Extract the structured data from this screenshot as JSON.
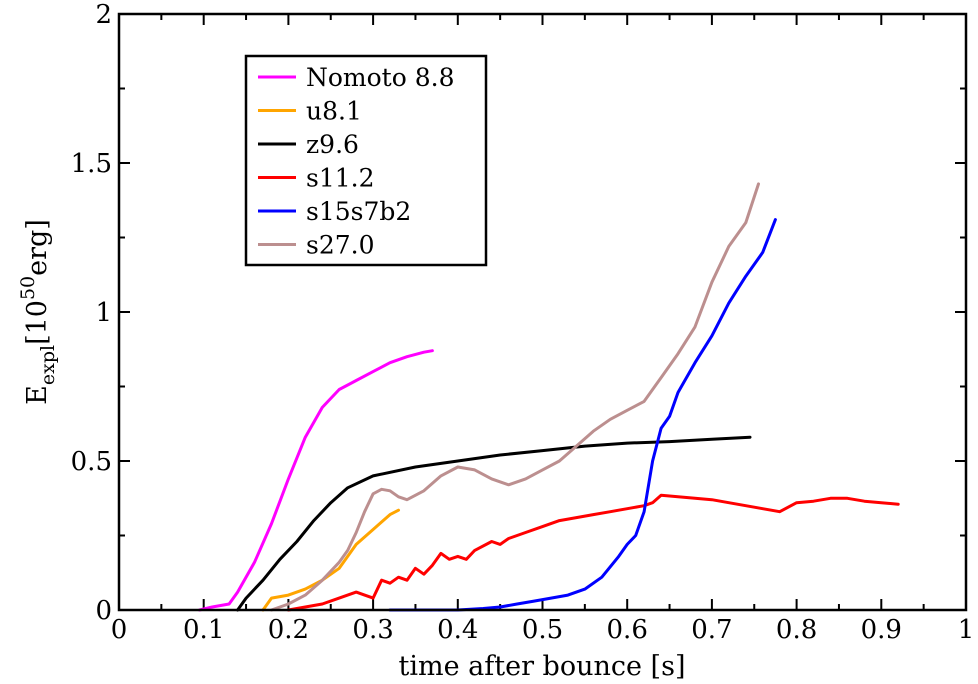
{
  "chart_data": {
    "type": "line",
    "title": "",
    "xlabel": "time after bounce [s]",
    "ylabel": {
      "base": "E",
      "sub": "expl",
      "unit_pre": "[10",
      "sup": "50",
      "unit_post": "erg]"
    },
    "xlim": [
      0,
      1
    ],
    "ylim": [
      0,
      2
    ],
    "x_ticks": [
      0,
      0.1,
      0.2,
      0.3,
      0.4,
      0.5,
      0.6,
      0.7,
      0.8,
      0.9,
      1
    ],
    "x_tick_labels": [
      "0",
      "0.1",
      "0.2",
      "0.3",
      "0.4",
      "0.5",
      "0.6",
      "0.7",
      "0.8",
      "0.9",
      "1"
    ],
    "y_ticks": [
      0,
      0.5,
      1,
      1.5,
      2
    ],
    "y_tick_labels": [
      "0",
      "0.5",
      "1",
      "1.5",
      "2"
    ],
    "legend_position": "top-left",
    "series": [
      {
        "name": "Nomoto 8.8",
        "color": "#ff00ff",
        "x": [
          0.095,
          0.11,
          0.13,
          0.14,
          0.16,
          0.18,
          0.2,
          0.22,
          0.24,
          0.26,
          0.28,
          0.3,
          0.32,
          0.34,
          0.36,
          0.37
        ],
        "y": [
          0.0,
          0.01,
          0.02,
          0.06,
          0.16,
          0.29,
          0.44,
          0.58,
          0.68,
          0.74,
          0.77,
          0.8,
          0.83,
          0.85,
          0.865,
          0.87
        ]
      },
      {
        "name": "u8.1",
        "color": "#ffa500",
        "x": [
          0.17,
          0.18,
          0.2,
          0.22,
          0.24,
          0.26,
          0.28,
          0.3,
          0.32,
          0.33
        ],
        "y": [
          0.0,
          0.04,
          0.05,
          0.07,
          0.1,
          0.14,
          0.22,
          0.27,
          0.32,
          0.335
        ]
      },
      {
        "name": "z9.6",
        "color": "#000000",
        "x": [
          0.14,
          0.15,
          0.17,
          0.19,
          0.21,
          0.23,
          0.25,
          0.27,
          0.3,
          0.35,
          0.4,
          0.45,
          0.5,
          0.55,
          0.6,
          0.65,
          0.7,
          0.745
        ],
        "y": [
          0.0,
          0.04,
          0.1,
          0.17,
          0.23,
          0.3,
          0.36,
          0.41,
          0.45,
          0.48,
          0.5,
          0.52,
          0.535,
          0.55,
          0.56,
          0.565,
          0.573,
          0.58
        ]
      },
      {
        "name": "s11.2",
        "color": "#ff0000",
        "x": [
          0.2,
          0.22,
          0.24,
          0.26,
          0.28,
          0.29,
          0.3,
          0.31,
          0.32,
          0.33,
          0.34,
          0.35,
          0.36,
          0.37,
          0.38,
          0.39,
          0.4,
          0.41,
          0.42,
          0.44,
          0.45,
          0.46,
          0.48,
          0.5,
          0.52,
          0.54,
          0.56,
          0.58,
          0.6,
          0.62,
          0.63,
          0.64,
          0.66,
          0.68,
          0.7,
          0.72,
          0.74,
          0.75,
          0.76,
          0.78,
          0.8,
          0.82,
          0.84,
          0.86,
          0.88,
          0.9,
          0.92
        ],
        "y": [
          0.0,
          0.01,
          0.02,
          0.04,
          0.06,
          0.05,
          0.04,
          0.1,
          0.09,
          0.11,
          0.1,
          0.14,
          0.12,
          0.15,
          0.19,
          0.17,
          0.18,
          0.17,
          0.2,
          0.23,
          0.22,
          0.24,
          0.26,
          0.28,
          0.3,
          0.31,
          0.32,
          0.33,
          0.34,
          0.35,
          0.36,
          0.385,
          0.38,
          0.375,
          0.37,
          0.36,
          0.35,
          0.345,
          0.34,
          0.33,
          0.36,
          0.365,
          0.375,
          0.375,
          0.365,
          0.36,
          0.355
        ]
      },
      {
        "name": "s15s7b2",
        "color": "#0000ff",
        "x": [
          0.32,
          0.4,
          0.43,
          0.45,
          0.47,
          0.49,
          0.51,
          0.53,
          0.55,
          0.57,
          0.59,
          0.6,
          0.61,
          0.62,
          0.63,
          0.64,
          0.65,
          0.66,
          0.68,
          0.7,
          0.72,
          0.74,
          0.76,
          0.775
        ],
        "y": [
          0.0,
          0.0,
          0.005,
          0.01,
          0.02,
          0.03,
          0.04,
          0.05,
          0.07,
          0.11,
          0.18,
          0.22,
          0.25,
          0.33,
          0.5,
          0.61,
          0.65,
          0.73,
          0.83,
          0.92,
          1.03,
          1.12,
          1.2,
          1.31
        ]
      },
      {
        "name": "s27.0",
        "color": "#bc8f8f",
        "x": [
          0.18,
          0.2,
          0.22,
          0.24,
          0.26,
          0.27,
          0.28,
          0.29,
          0.3,
          0.31,
          0.32,
          0.33,
          0.34,
          0.36,
          0.38,
          0.4,
          0.42,
          0.44,
          0.46,
          0.48,
          0.5,
          0.52,
          0.54,
          0.56,
          0.58,
          0.6,
          0.62,
          0.64,
          0.66,
          0.68,
          0.7,
          0.72,
          0.74,
          0.755
        ],
        "y": [
          0.0,
          0.02,
          0.05,
          0.1,
          0.16,
          0.2,
          0.26,
          0.33,
          0.39,
          0.405,
          0.4,
          0.38,
          0.37,
          0.4,
          0.45,
          0.48,
          0.47,
          0.44,
          0.42,
          0.44,
          0.47,
          0.5,
          0.55,
          0.6,
          0.64,
          0.67,
          0.7,
          0.78,
          0.86,
          0.95,
          1.1,
          1.22,
          1.3,
          1.43
        ]
      }
    ]
  }
}
